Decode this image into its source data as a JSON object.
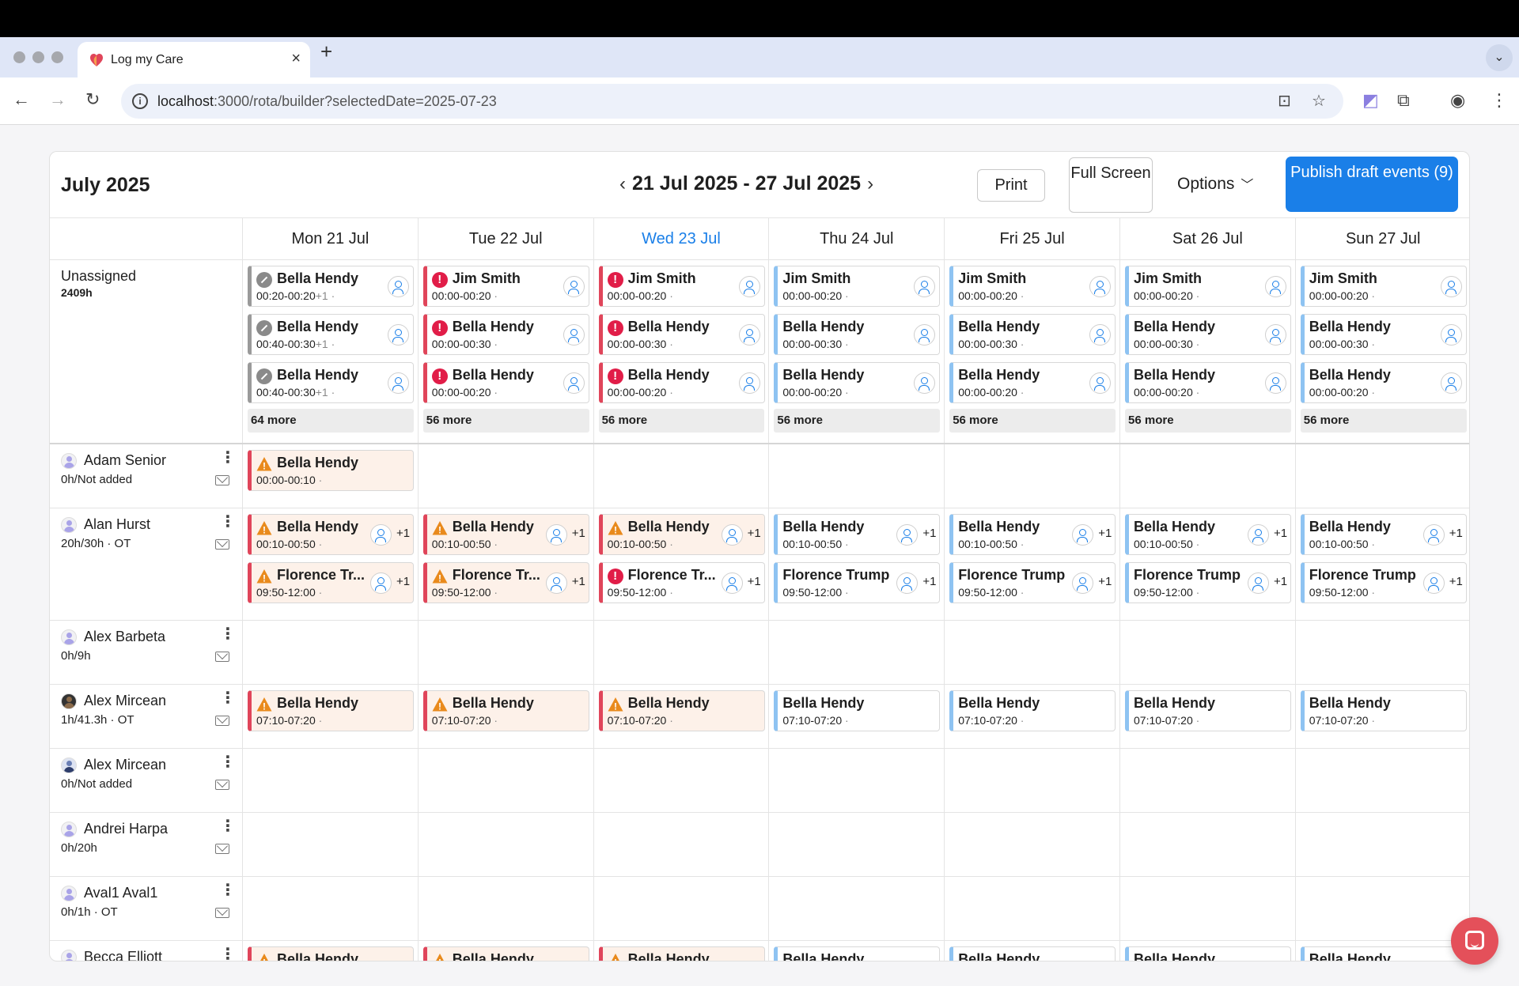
{
  "browser": {
    "tab_title": "Log my Care",
    "url_host": "localhost",
    "url_path": ":3000/rota/builder?selectedDate=2025-07-23",
    "new_tab_glyph": "+",
    "tab_close_glyph": "×"
  },
  "header": {
    "month_title": "July 2025",
    "week_range": "21 Jul 2025 - 27 Jul 2025",
    "print_label": "Print",
    "full_screen_label": "Full Screen",
    "options_label": "Options",
    "publish_label": "Publish draft events (9)"
  },
  "days": [
    {
      "label": "Mon 21 Jul",
      "today": false
    },
    {
      "label": "Tue 22 Jul",
      "today": false
    },
    {
      "label": "Wed 23 Jul",
      "today": true
    },
    {
      "label": "Thu 24 Jul",
      "today": false
    },
    {
      "label": "Fri 25 Jul",
      "today": false
    },
    {
      "label": "Sat 26 Jul",
      "today": false
    },
    {
      "label": "Sun 27 Jul",
      "today": false
    }
  ],
  "unassigned": {
    "label": "Unassigned",
    "hours": "2409h",
    "days": [
      {
        "more": "64 more",
        "events": [
          {
            "name": "Bella Hendy",
            "time": "00:20-00:20",
            "extra": "+1",
            "status": "neutral"
          },
          {
            "name": "Bella Hendy",
            "time": "00:40-00:30",
            "extra": "+1",
            "status": "neutral"
          },
          {
            "name": "Bella Hendy",
            "time": "00:40-00:30",
            "extra": "+1",
            "status": "neutral"
          }
        ]
      },
      {
        "more": "56 more",
        "events": [
          {
            "name": "Jim Smith",
            "time": "00:00-00:20",
            "extra": "",
            "status": "error"
          },
          {
            "name": "Bella Hendy",
            "time": "00:00-00:30",
            "extra": "",
            "status": "error"
          },
          {
            "name": "Bella Hendy",
            "time": "00:00-00:20",
            "extra": "",
            "status": "error"
          }
        ]
      },
      {
        "more": "56 more",
        "events": [
          {
            "name": "Jim Smith",
            "time": "00:00-00:20",
            "extra": "",
            "status": "error"
          },
          {
            "name": "Bella Hendy",
            "time": "00:00-00:30",
            "extra": "",
            "status": "error"
          },
          {
            "name": "Bella Hendy",
            "time": "00:00-00:20",
            "extra": "",
            "status": "error"
          }
        ]
      },
      {
        "more": "56 more",
        "events": [
          {
            "name": "Jim Smith",
            "time": "00:00-00:20",
            "extra": "",
            "status": "ok"
          },
          {
            "name": "Bella Hendy",
            "time": "00:00-00:30",
            "extra": "",
            "status": "ok"
          },
          {
            "name": "Bella Hendy",
            "time": "00:00-00:20",
            "extra": "",
            "status": "ok"
          }
        ]
      },
      {
        "more": "56 more",
        "events": [
          {
            "name": "Jim Smith",
            "time": "00:00-00:20",
            "extra": "",
            "status": "ok"
          },
          {
            "name": "Bella Hendy",
            "time": "00:00-00:30",
            "extra": "",
            "status": "ok"
          },
          {
            "name": "Bella Hendy",
            "time": "00:00-00:20",
            "extra": "",
            "status": "ok"
          }
        ]
      },
      {
        "more": "56 more",
        "events": [
          {
            "name": "Jim Smith",
            "time": "00:00-00:20",
            "extra": "",
            "status": "ok"
          },
          {
            "name": "Bella Hendy",
            "time": "00:00-00:30",
            "extra": "",
            "status": "ok"
          },
          {
            "name": "Bella Hendy",
            "time": "00:00-00:20",
            "extra": "",
            "status": "ok"
          }
        ]
      },
      {
        "more": "56 more",
        "events": [
          {
            "name": "Jim Smith",
            "time": "00:00-00:20",
            "extra": "",
            "status": "ok"
          },
          {
            "name": "Bella Hendy",
            "time": "00:00-00:30",
            "extra": "",
            "status": "ok"
          },
          {
            "name": "Bella Hendy",
            "time": "00:00-00:20",
            "extra": "",
            "status": "ok"
          }
        ]
      }
    ]
  },
  "staff": [
    {
      "name": "Adam Senior",
      "hours": "0h/Not added",
      "avatar": "default",
      "days": [
        [
          {
            "name": "Bella Hendy",
            "time": "00:00-00:10",
            "status": "warn",
            "assign": false,
            "plus": ""
          }
        ],
        [],
        [],
        [],
        [],
        [],
        []
      ]
    },
    {
      "name": "Alan Hurst",
      "hours": "20h/30h · OT",
      "avatar": "default",
      "days": [
        [
          {
            "name": "Bella Hendy",
            "time": "00:10-00:50",
            "status": "warn",
            "assign": true,
            "plus": "+1"
          },
          {
            "name": "Florence Tr...",
            "time": "09:50-12:00",
            "status": "warn",
            "assign": true,
            "plus": "+1"
          }
        ],
        [
          {
            "name": "Bella Hendy",
            "time": "00:10-00:50",
            "status": "warn",
            "assign": true,
            "plus": "+1"
          },
          {
            "name": "Florence Tr...",
            "time": "09:50-12:00",
            "status": "warn",
            "assign": true,
            "plus": "+1"
          }
        ],
        [
          {
            "name": "Bella Hendy",
            "time": "00:10-00:50",
            "status": "warn",
            "assign": true,
            "plus": "+1"
          },
          {
            "name": "Florence Tr...",
            "time": "09:50-12:00",
            "status": "error",
            "assign": true,
            "plus": "+1"
          }
        ],
        [
          {
            "name": "Bella Hendy",
            "time": "00:10-00:50",
            "status": "ok",
            "assign": true,
            "plus": "+1"
          },
          {
            "name": "Florence Trump",
            "time": "09:50-12:00",
            "status": "ok",
            "assign": true,
            "plus": "+1"
          }
        ],
        [
          {
            "name": "Bella Hendy",
            "time": "00:10-00:50",
            "status": "ok",
            "assign": true,
            "plus": "+1"
          },
          {
            "name": "Florence Trump",
            "time": "09:50-12:00",
            "status": "ok",
            "assign": true,
            "plus": "+1"
          }
        ],
        [
          {
            "name": "Bella Hendy",
            "time": "00:10-00:50",
            "status": "ok",
            "assign": true,
            "plus": "+1"
          },
          {
            "name": "Florence Trump",
            "time": "09:50-12:00",
            "status": "ok",
            "assign": true,
            "plus": "+1"
          }
        ],
        [
          {
            "name": "Bella Hendy",
            "time": "00:10-00:50",
            "status": "ok",
            "assign": true,
            "plus": "+1"
          },
          {
            "name": "Florence Trump",
            "time": "09:50-12:00",
            "status": "ok",
            "assign": true,
            "plus": "+1"
          }
        ]
      ]
    },
    {
      "name": "Alex Barbeta",
      "hours": "0h/9h",
      "avatar": "default",
      "days": [
        [],
        [],
        [],
        [],
        [],
        [],
        []
      ]
    },
    {
      "name": "Alex Mircean",
      "hours": "1h/41.3h · OT",
      "avatar": "dark",
      "days": [
        [
          {
            "name": "Bella Hendy",
            "time": "07:10-07:20",
            "status": "warn",
            "assign": false,
            "plus": ""
          }
        ],
        [
          {
            "name": "Bella Hendy",
            "time": "07:10-07:20",
            "status": "warn",
            "assign": false,
            "plus": ""
          }
        ],
        [
          {
            "name": "Bella Hendy",
            "time": "07:10-07:20",
            "status": "warn",
            "assign": false,
            "plus": ""
          }
        ],
        [
          {
            "name": "Bella Hendy",
            "time": "07:10-07:20",
            "status": "ok",
            "assign": false,
            "plus": ""
          }
        ],
        [
          {
            "name": "Bella Hendy",
            "time": "07:10-07:20",
            "status": "ok",
            "assign": false,
            "plus": ""
          }
        ],
        [
          {
            "name": "Bella Hendy",
            "time": "07:10-07:20",
            "status": "ok",
            "assign": false,
            "plus": ""
          }
        ],
        [
          {
            "name": "Bella Hendy",
            "time": "07:10-07:20",
            "status": "ok",
            "assign": false,
            "plus": ""
          }
        ]
      ]
    },
    {
      "name": "Alex Mircean",
      "hours": "0h/Not added",
      "avatar": "navy",
      "days": [
        [],
        [],
        [],
        [],
        [],
        [],
        []
      ]
    },
    {
      "name": "Andrei Harpa",
      "hours": "0h/20h",
      "avatar": "default",
      "days": [
        [],
        [],
        [],
        [],
        [],
        [],
        []
      ]
    },
    {
      "name": "Aval1 Aval1",
      "hours": "0h/1h · OT",
      "avatar": "default",
      "days": [
        [],
        [],
        [],
        [],
        [],
        [],
        []
      ]
    },
    {
      "name": "Becca Elliott",
      "hours": "",
      "avatar": "default",
      "days": [
        [
          {
            "name": "Bella Hendy",
            "time": "",
            "status": "warn",
            "assign": false,
            "plus": ""
          }
        ],
        [
          {
            "name": "Bella Hendy",
            "time": "",
            "status": "warn",
            "assign": false,
            "plus": ""
          }
        ],
        [
          {
            "name": "Bella Hendy",
            "time": "",
            "status": "warn",
            "assign": false,
            "plus": ""
          }
        ],
        [
          {
            "name": "Bella Hendy",
            "time": "",
            "status": "ok",
            "assign": false,
            "plus": ""
          }
        ],
        [
          {
            "name": "Bella Hendy",
            "time": "",
            "status": "ok",
            "assign": false,
            "plus": ""
          }
        ],
        [
          {
            "name": "Bella Hendy",
            "time": "",
            "status": "ok",
            "assign": false,
            "plus": ""
          }
        ],
        [
          {
            "name": "Bella Hendy",
            "time": "",
            "status": "ok",
            "assign": false,
            "plus": ""
          }
        ]
      ]
    }
  ],
  "colors": {
    "accent": "#1a7fe8",
    "error": "#e11d48",
    "warning": "#e98a1c",
    "ok_stripe": "#8ec3f2"
  }
}
